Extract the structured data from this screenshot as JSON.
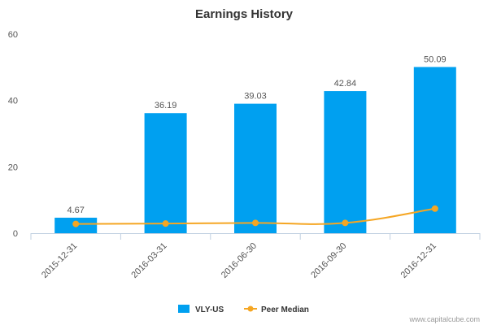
{
  "chart_data": {
    "type": "bar",
    "title": "Earnings History",
    "categories": [
      "2015-12-31",
      "2016-03-31",
      "2016-06-30",
      "2016-09-30",
      "2016-12-31"
    ],
    "series": [
      {
        "name": "VLY-US",
        "type": "bar",
        "color": "#00a0f0",
        "values": [
          4.67,
          36.19,
          39.03,
          42.84,
          50.09
        ],
        "labels": [
          "4.67",
          "36.19",
          "39.03",
          "42.84",
          "50.09"
        ]
      },
      {
        "name": "Peer Median",
        "type": "line",
        "color": "#f5a623",
        "values": [
          2.8,
          2.9,
          3.1,
          3.1,
          7.4
        ]
      }
    ],
    "ylim": [
      0,
      60
    ],
    "yticks": [
      "0",
      "20",
      "40",
      "60"
    ],
    "grid": false,
    "legend_position": "bottom"
  },
  "credit": "www.capitalcube.com"
}
